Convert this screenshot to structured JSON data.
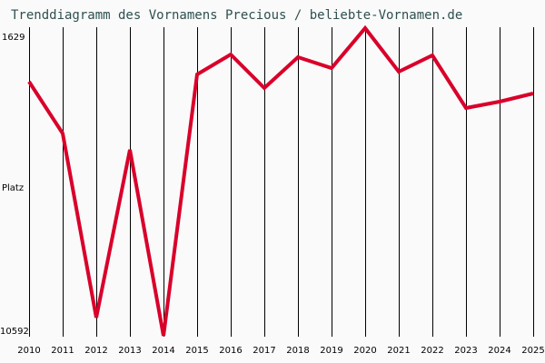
{
  "title": "Trenddiagramm des Vornamens Precious / beliebte-Vornamen.de",
  "y_axis": {
    "top_label": "1629",
    "middle_label": "Platz",
    "bottom_label": "10592"
  },
  "colors": {
    "line": "#d9002a",
    "grid": "#000000",
    "title": "#2f4f4f",
    "background": "#fafafa"
  },
  "chart_data": {
    "type": "line",
    "title": "Trenddiagramm des Vornamens Precious / beliebte-Vornamen.de",
    "xlabel": "",
    "ylabel": "Platz",
    "ylim": [
      10592,
      1629
    ],
    "y_inverted": true,
    "grid": "vertical",
    "categories": [
      "2010",
      "2011",
      "2012",
      "2013",
      "2014",
      "2015",
      "2016",
      "2017",
      "2018",
      "2019",
      "2020",
      "2021",
      "2022",
      "2023",
      "2024",
      "2025"
    ],
    "series": [
      {
        "name": "Precious",
        "values": [
          3189,
          4696,
          10064,
          5172,
          10592,
          2977,
          2396,
          3374,
          2475,
          2792,
          1629,
          2898,
          2422,
          3956,
          3771,
          3533
        ]
      }
    ]
  }
}
